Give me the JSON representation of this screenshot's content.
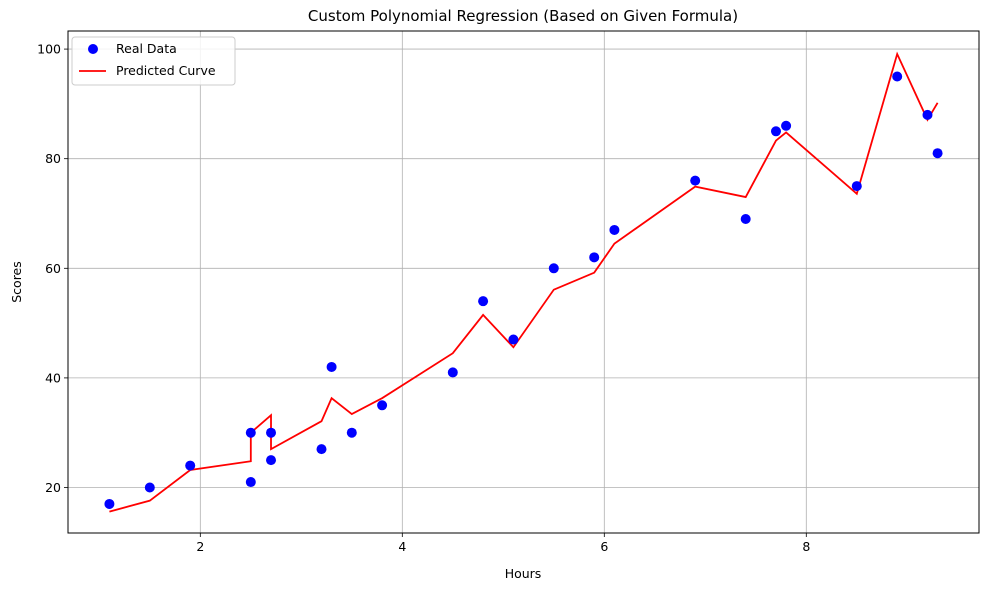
{
  "chart_data": {
    "type": "scatter",
    "title": "Custom Polynomial Regression (Based on Given Formula)",
    "xlabel": "Hours",
    "ylabel": "Scores",
    "xlim": [
      0.69,
      9.71
    ],
    "ylim": [
      11.7,
      103.3
    ],
    "xticks": [
      2,
      4,
      6,
      8
    ],
    "yticks": [
      20,
      40,
      60,
      80,
      100
    ],
    "grid": true,
    "legend_position": "top-left",
    "series": [
      {
        "name": "Real Data",
        "kind": "scatter",
        "color": "#0000ff",
        "points": [
          [
            1.1,
            17
          ],
          [
            1.5,
            20
          ],
          [
            1.9,
            24
          ],
          [
            2.5,
            21
          ],
          [
            2.5,
            30
          ],
          [
            2.7,
            25
          ],
          [
            2.7,
            30
          ],
          [
            3.2,
            27
          ],
          [
            3.3,
            42
          ],
          [
            3.5,
            30
          ],
          [
            3.8,
            35
          ],
          [
            4.5,
            41
          ],
          [
            4.8,
            54
          ],
          [
            5.1,
            47
          ],
          [
            5.5,
            60
          ],
          [
            5.9,
            62
          ],
          [
            6.1,
            67
          ],
          [
            6.9,
            76
          ],
          [
            7.4,
            69
          ],
          [
            7.7,
            85
          ],
          [
            7.8,
            86
          ],
          [
            8.5,
            75
          ],
          [
            8.9,
            95
          ],
          [
            9.2,
            88
          ],
          [
            9.3,
            81
          ]
        ]
      },
      {
        "name": "Predicted Curve",
        "kind": "line",
        "color": "#ff0000",
        "points": [
          [
            1.1,
            15.6
          ],
          [
            1.5,
            17.6
          ],
          [
            1.9,
            23.2
          ],
          [
            2.5,
            24.8
          ],
          [
            2.5,
            30
          ],
          [
            2.7,
            33.2
          ],
          [
            2.7,
            27
          ],
          [
            3.2,
            32.1
          ],
          [
            3.3,
            36.3
          ],
          [
            3.5,
            33.4
          ],
          [
            3.8,
            36.3
          ],
          [
            4.5,
            44.5
          ],
          [
            4.8,
            51.5
          ],
          [
            5.1,
            45.6
          ],
          [
            5.5,
            56.1
          ],
          [
            5.9,
            59.2
          ],
          [
            6.1,
            64.5
          ],
          [
            6.9,
            74.9
          ],
          [
            7.4,
            73
          ],
          [
            7.7,
            83.3
          ],
          [
            7.8,
            84.8
          ],
          [
            8.5,
            73.6
          ],
          [
            8.9,
            99.1
          ],
          [
            9.2,
            87.1
          ],
          [
            9.3,
            90.2
          ]
        ]
      }
    ]
  }
}
